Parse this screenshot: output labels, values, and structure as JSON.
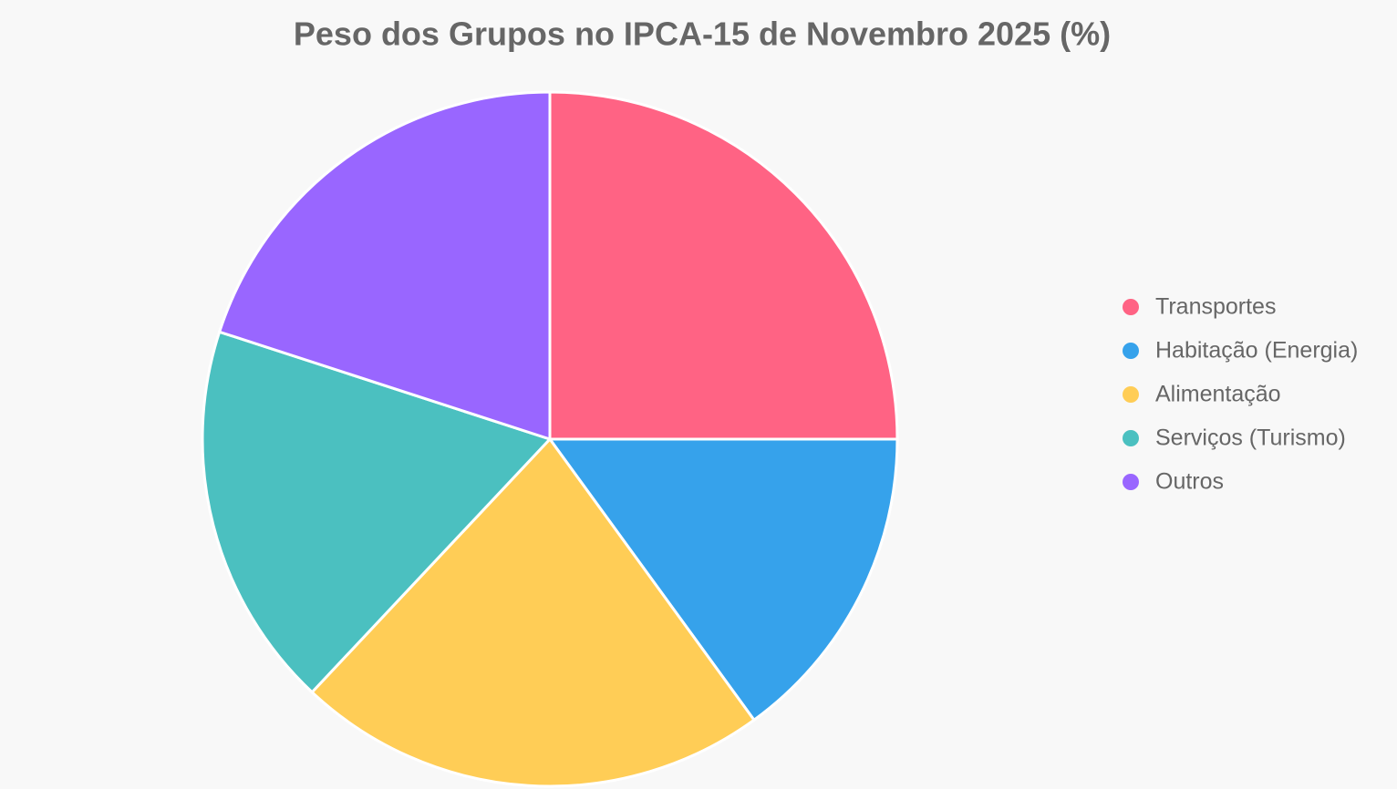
{
  "chart_data": {
    "type": "pie",
    "title": "Peso dos Grupos no IPCA-15 de Novembro 2025 (%)",
    "categories": [
      "Transportes",
      "Habitação (Energia)",
      "Alimentação",
      "Serviços (Turismo)",
      "Outros"
    ],
    "values": [
      25,
      15,
      22,
      18,
      20
    ],
    "colors": [
      "#ff6384",
      "#36a2eb",
      "#ffcd56",
      "#4bc0c0",
      "#9966ff"
    ],
    "legend": "right"
  }
}
